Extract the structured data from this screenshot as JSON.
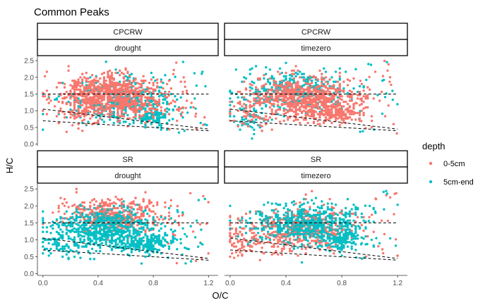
{
  "chart_data": {
    "type": "scatter",
    "title": "Common Peaks",
    "xlabel": "O/C",
    "ylabel": "H/C",
    "xlim": [
      -0.04,
      1.27
    ],
    "ylim": [
      -0.05,
      2.65
    ],
    "x_ticks": [
      0.0,
      0.4,
      0.8,
      1.2
    ],
    "x_tick_labels": [
      "0.0",
      "0.4",
      "0.8",
      "1.2"
    ],
    "y_ticks": [
      0.0,
      0.5,
      1.0,
      1.5,
      2.0,
      2.5
    ],
    "y_tick_labels": [
      "0.0",
      "0.5",
      "1.0",
      "1.5",
      "2.0",
      "2.5"
    ],
    "grid": false,
    "legend": {
      "title": "depth",
      "position": "right",
      "entries": [
        {
          "label": "0-5cm",
          "color": "#F8766D"
        },
        {
          "label": "5cm-end",
          "color": "#00BFC4"
        }
      ]
    },
    "facet_rows": [
      "CPCRW",
      "SR"
    ],
    "facet_cols": [
      "drought",
      "timezero"
    ],
    "reference_lines": [
      {
        "style": "dashed",
        "points": [
          [
            0.0,
            1.5
          ],
          [
            1.2,
            1.5
          ]
        ]
      },
      {
        "style": "dashed",
        "points": [
          [
            0.0,
            1.05
          ],
          [
            1.2,
            0.45
          ]
        ]
      },
      {
        "style": "dashed",
        "points": [
          [
            0.0,
            0.7
          ],
          [
            1.2,
            0.4
          ]
        ]
      }
    ],
    "panels": [
      {
        "site": "CPCRW",
        "treatment": "drought",
        "top_series": "0-5cm",
        "series": [
          {
            "name": "0-5cm",
            "clusters": [
              {
                "cx": 0.48,
                "cy": 1.55,
                "sx": 0.18,
                "sy": 0.28,
                "n": 700
              },
              {
                "cx": 0.62,
                "cy": 1.05,
                "sx": 0.18,
                "sy": 0.18,
                "n": 160
              },
              {
                "cx": 0.25,
                "cy": 0.95,
                "sx": 0.1,
                "sy": 0.25,
                "n": 60
              }
            ]
          },
          {
            "name": "5cm-end",
            "clusters": [
              {
                "cx": 0.55,
                "cy": 1.3,
                "sx": 0.2,
                "sy": 0.32,
                "n": 420
              },
              {
                "cx": 0.8,
                "cy": 0.8,
                "sx": 0.07,
                "sy": 0.15,
                "n": 90
              }
            ]
          }
        ]
      },
      {
        "site": "CPCRW",
        "treatment": "timezero",
        "top_series": "0-5cm",
        "series": [
          {
            "name": "0-5cm",
            "clusters": [
              {
                "cx": 0.55,
                "cy": 1.45,
                "sx": 0.2,
                "sy": 0.3,
                "n": 620
              },
              {
                "cx": 0.72,
                "cy": 0.95,
                "sx": 0.13,
                "sy": 0.16,
                "n": 240
              },
              {
                "cx": 0.2,
                "cy": 0.9,
                "sx": 0.1,
                "sy": 0.25,
                "n": 70
              }
            ]
          },
          {
            "name": "5cm-end",
            "clusters": [
              {
                "cx": 0.45,
                "cy": 1.6,
                "sx": 0.18,
                "sy": 0.3,
                "n": 380
              },
              {
                "cx": 0.15,
                "cy": 0.8,
                "sx": 0.08,
                "sy": 0.25,
                "n": 60
              }
            ]
          }
        ]
      },
      {
        "site": "SR",
        "treatment": "drought",
        "top_series": "5cm-end",
        "series": [
          {
            "name": "0-5cm",
            "clusters": [
              {
                "cx": 0.5,
                "cy": 1.7,
                "sx": 0.18,
                "sy": 0.25,
                "n": 520
              }
            ]
          },
          {
            "name": "5cm-end",
            "clusters": [
              {
                "cx": 0.45,
                "cy": 1.3,
                "sx": 0.2,
                "sy": 0.3,
                "n": 650
              },
              {
                "cx": 0.75,
                "cy": 0.9,
                "sx": 0.12,
                "sy": 0.15,
                "n": 200
              },
              {
                "cx": 0.15,
                "cy": 0.8,
                "sx": 0.08,
                "sy": 0.22,
                "n": 70
              }
            ]
          }
        ]
      },
      {
        "site": "SR",
        "treatment": "timezero",
        "top_series": "5cm-end",
        "series": [
          {
            "name": "0-5cm",
            "clusters": [
              {
                "cx": 0.5,
                "cy": 1.3,
                "sx": 0.2,
                "sy": 0.32,
                "n": 520
              },
              {
                "cx": 0.1,
                "cy": 0.9,
                "sx": 0.07,
                "sy": 0.25,
                "n": 60
              }
            ]
          },
          {
            "name": "5cm-end",
            "clusters": [
              {
                "cx": 0.55,
                "cy": 1.45,
                "sx": 0.2,
                "sy": 0.3,
                "n": 560
              },
              {
                "cx": 0.8,
                "cy": 0.95,
                "sx": 0.08,
                "sy": 0.15,
                "n": 120
              }
            ]
          }
        ]
      }
    ]
  }
}
